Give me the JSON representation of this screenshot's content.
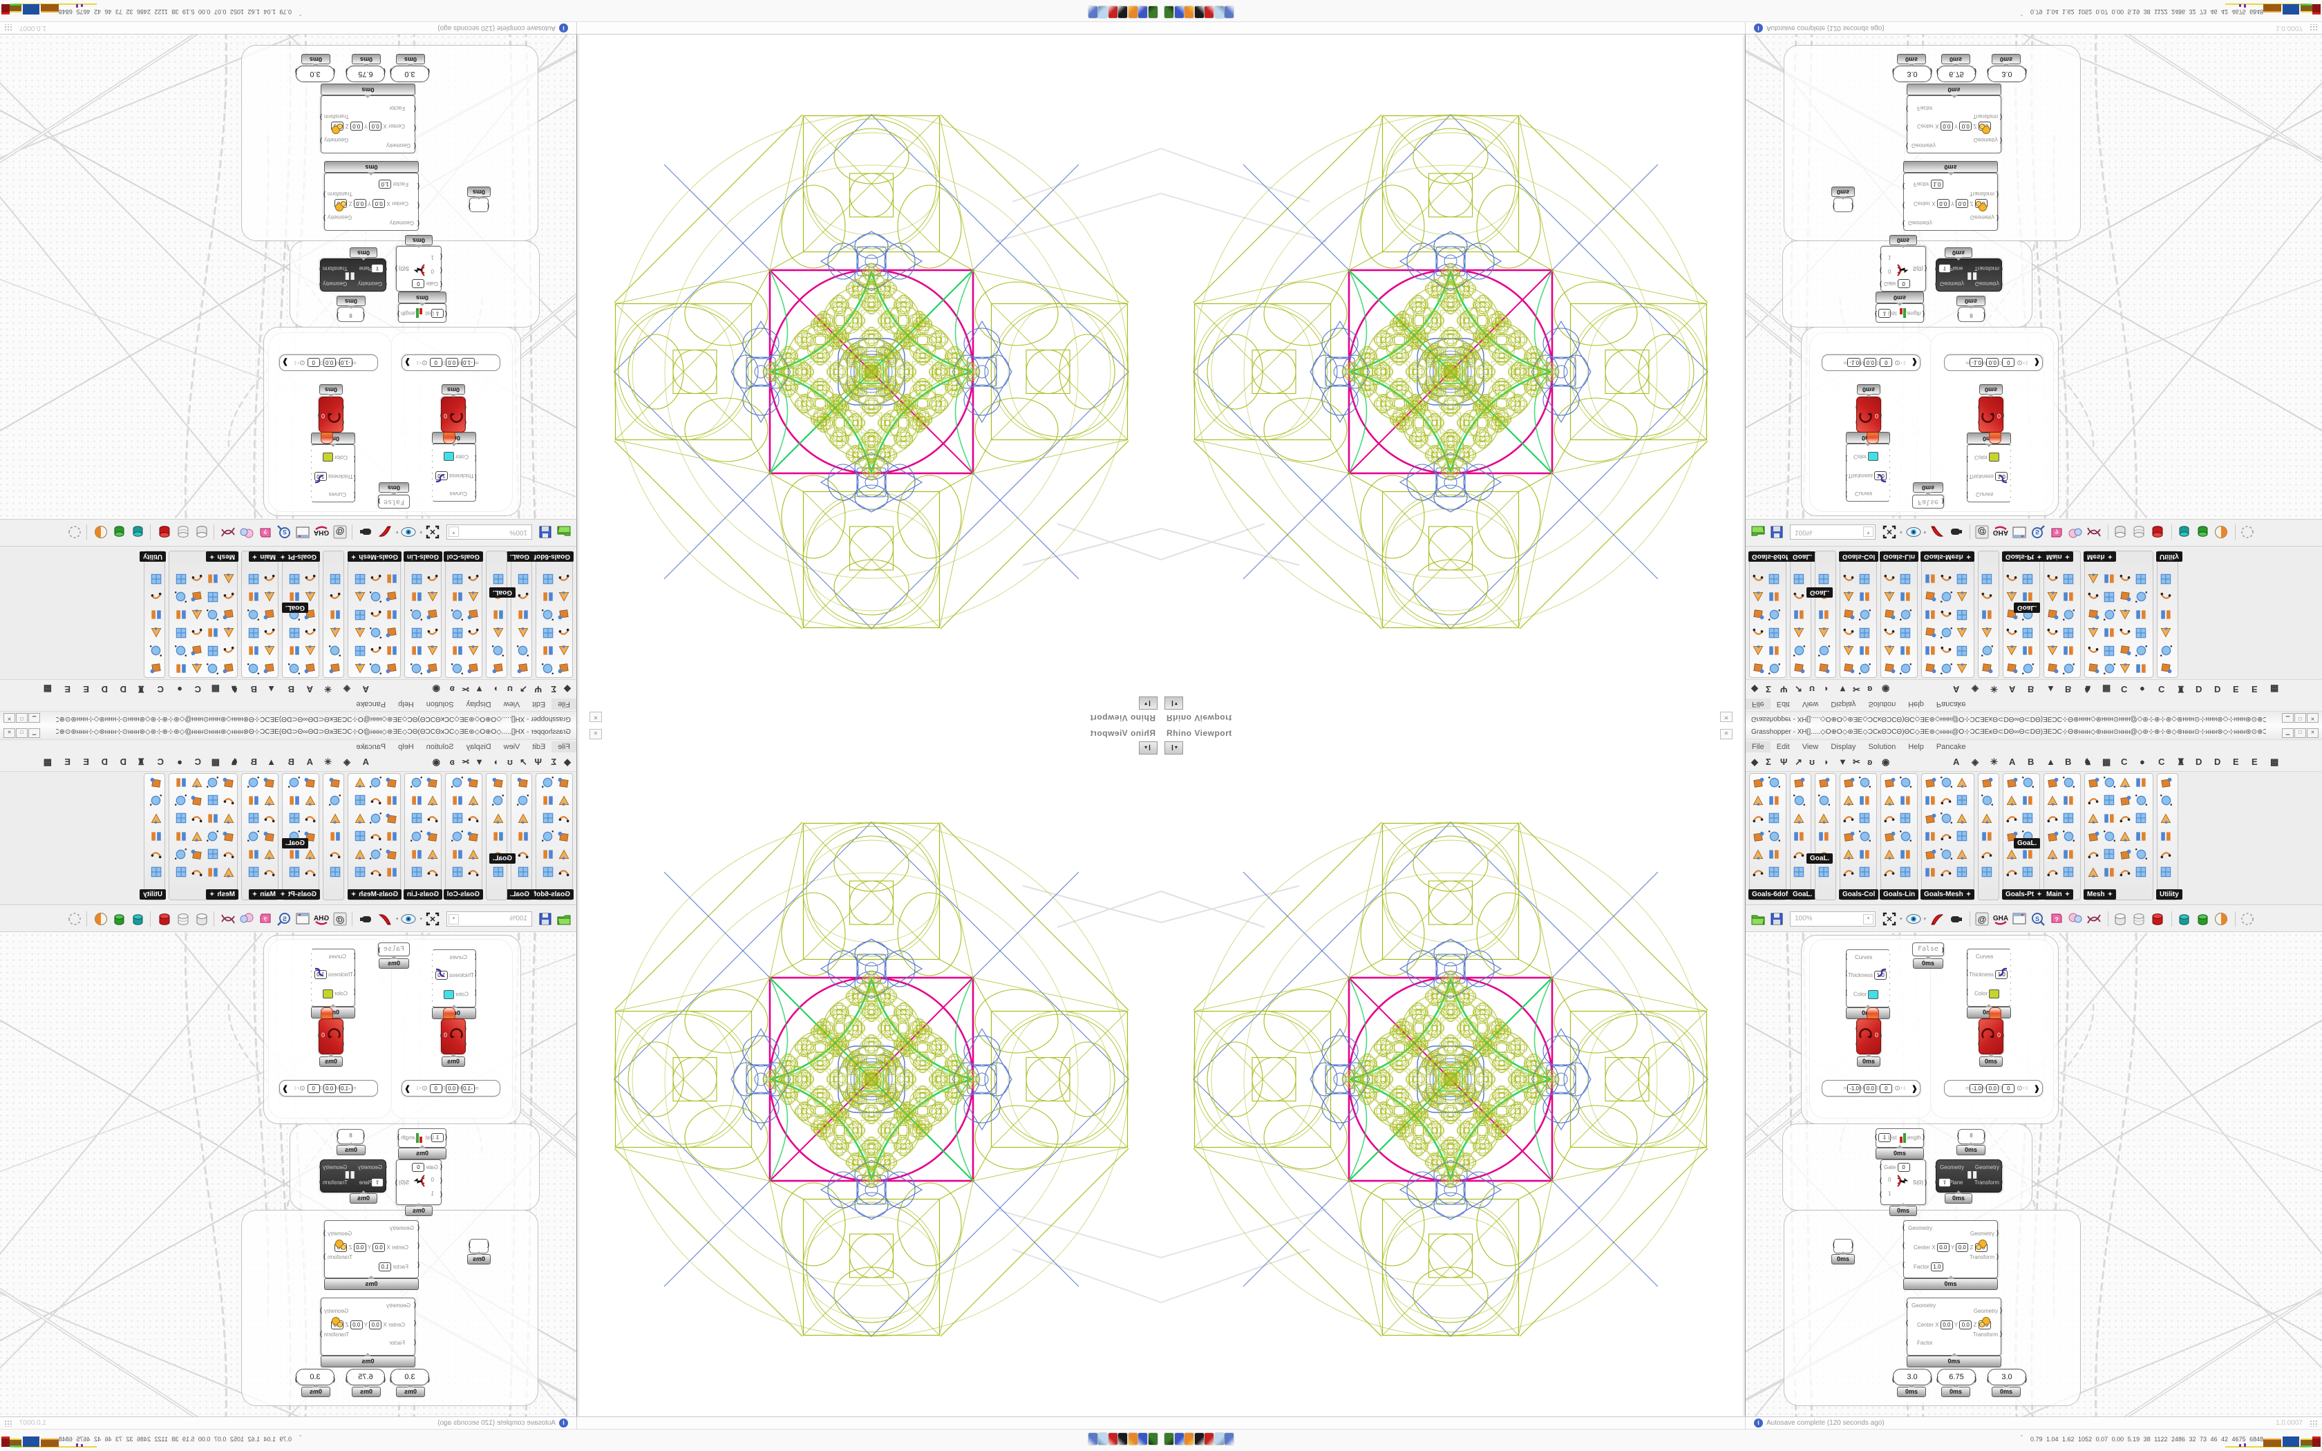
{
  "viewport": {
    "label": "Rhino Viewport",
    "close_glyph": "✕",
    "dropdown_glyph": "▾"
  },
  "gh": {
    "title": "Grasshopper - XH[].....◇O⊕O◇⊛ƎE◇ƆCĸΘƆCΘ)ΘC◇ƎE⊛◇ннн@O⊹ƆCƎEĸΘ⊂DΘ∞Θ⊂DΘ)ƎEƆC⊹Θ⊛ннн◇⊛ннн⊙ннн@◇⊛⊹⊕⊹⊛◇⊛ннн⊙⊹ннн⊛◇⊹ннн⊛⊙⊕ƆCƎEĸΘ⊂DΘ∞Θ...",
    "window_buttons": [
      "▁",
      "□",
      "✕"
    ],
    "menu": [
      "File",
      "Edit",
      "View",
      "Display",
      "Solution",
      "Help",
      "Pancake"
    ],
    "tabs_left": [
      "◆",
      "Σ",
      "Ψ",
      "↗",
      "ʊ",
      "◗",
      "▼",
      "✂",
      "ʚ",
      "◉"
    ],
    "tabs_right": [
      "A",
      "◈",
      "✳",
      "A",
      "B",
      "▲",
      "B",
      "♞",
      "▦",
      "C",
      "●",
      "C",
      "♜",
      "D",
      "D",
      "E",
      "E",
      "▩"
    ],
    "palette": {
      "floating_label": "GoaL.",
      "columns": [
        {
          "label": "Goals-6dof",
          "cols": 2,
          "plus": false
        },
        {
          "label": "GoaL.",
          "cols": 1,
          "plus": false
        },
        {
          "label": "",
          "cols": 1,
          "plus": false
        },
        {
          "label": "Goals-Col",
          "cols": 2,
          "plus": false
        },
        {
          "label": "Goals-Lin",
          "cols": 2,
          "plus": false
        },
        {
          "label": "Goals-Mesh",
          "cols": 3,
          "plus": true
        },
        {
          "label": "",
          "cols": 1,
          "plus": false
        },
        {
          "label": "Goals-Pt",
          "cols": 2,
          "plus": true
        },
        {
          "label": "Main",
          "cols": 2,
          "plus": true
        },
        {
          "label": "Mesh",
          "cols": 4,
          "plus": true
        },
        {
          "label": "Utility",
          "cols": 1,
          "plus": false
        }
      ]
    },
    "toolbar": {
      "zoom": "100%",
      "icons": [
        "open-folder",
        "save",
        "zoom-box",
        "focus-select",
        "eye-preview",
        "sketch-pen",
        "lamp",
        "sep",
        "at-link",
        "gha-plugin",
        "window-view",
        "s-search",
        "help-box",
        "balloons",
        "curve-cross",
        "sep",
        "cylinder-light",
        "cylinder-wire",
        "cylinder-red",
        "sep",
        "cylinder-teal",
        "cylinder-green",
        "sphere-orange",
        "sep",
        "dashed-circle"
      ]
    },
    "status": {
      "autosave": "Autosave complete (120 seconds ago)",
      "version": "1.0.0007"
    },
    "profiler_label": "0ms",
    "nodes": {
      "preview_inputs": [
        "Curves",
        "Thickness",
        "Color"
      ],
      "preview_thickness": "1.0",
      "preview_swatches": [
        "#41e0e6",
        "#c6d42c"
      ],
      "toggle_label": "False",
      "solver_value": "0",
      "gene_slider": {
        "m": "m",
        "m_val": "-1.0",
        "M": "M",
        "M_val": "0.0",
        "D": "D",
        "D_val": "0",
        "plus": "+1"
      },
      "list_length": {
        "input": "List",
        "output": "Length"
      },
      "panel_value": "8",
      "gate": {
        "label": "Gate",
        "gate_val": "0",
        "rows": [
          "0",
          "1"
        ],
        "output": "S(0)"
      },
      "pause": {
        "in1": "Geometry",
        "in2": "Plane",
        "out1": "Geometry",
        "out2": "Transform"
      },
      "scale": {
        "in1": "Geometry",
        "center": "Center",
        "axes": [
          "X",
          "Y",
          "Z"
        ],
        "axis_val": "0.0",
        "factor": "Factor",
        "factor_val": "1.0",
        "out1": "Geometry",
        "out2": "Transform"
      },
      "sliders": [
        "3.0",
        "6.75",
        "3.0"
      ]
    }
  },
  "taskbar": {
    "apps": [
      "terminal",
      "file-manager",
      "browser",
      "image-editor",
      "publisher",
      "text-editor",
      "calculator"
    ],
    "collapse_glyph": "ˆ",
    "stats": "0.79 1.04 1.62 1052 0.07 0.00 5.19 38 1122 2486 32 73 46 42 4675 6848"
  },
  "colors": {
    "magenta": "#e6008c",
    "olive": "#a9bc1e",
    "blue": "#5577c8",
    "green": "#1fd25f",
    "icon_orange": "#e0812e",
    "icon_blue": "#4e86d2"
  }
}
